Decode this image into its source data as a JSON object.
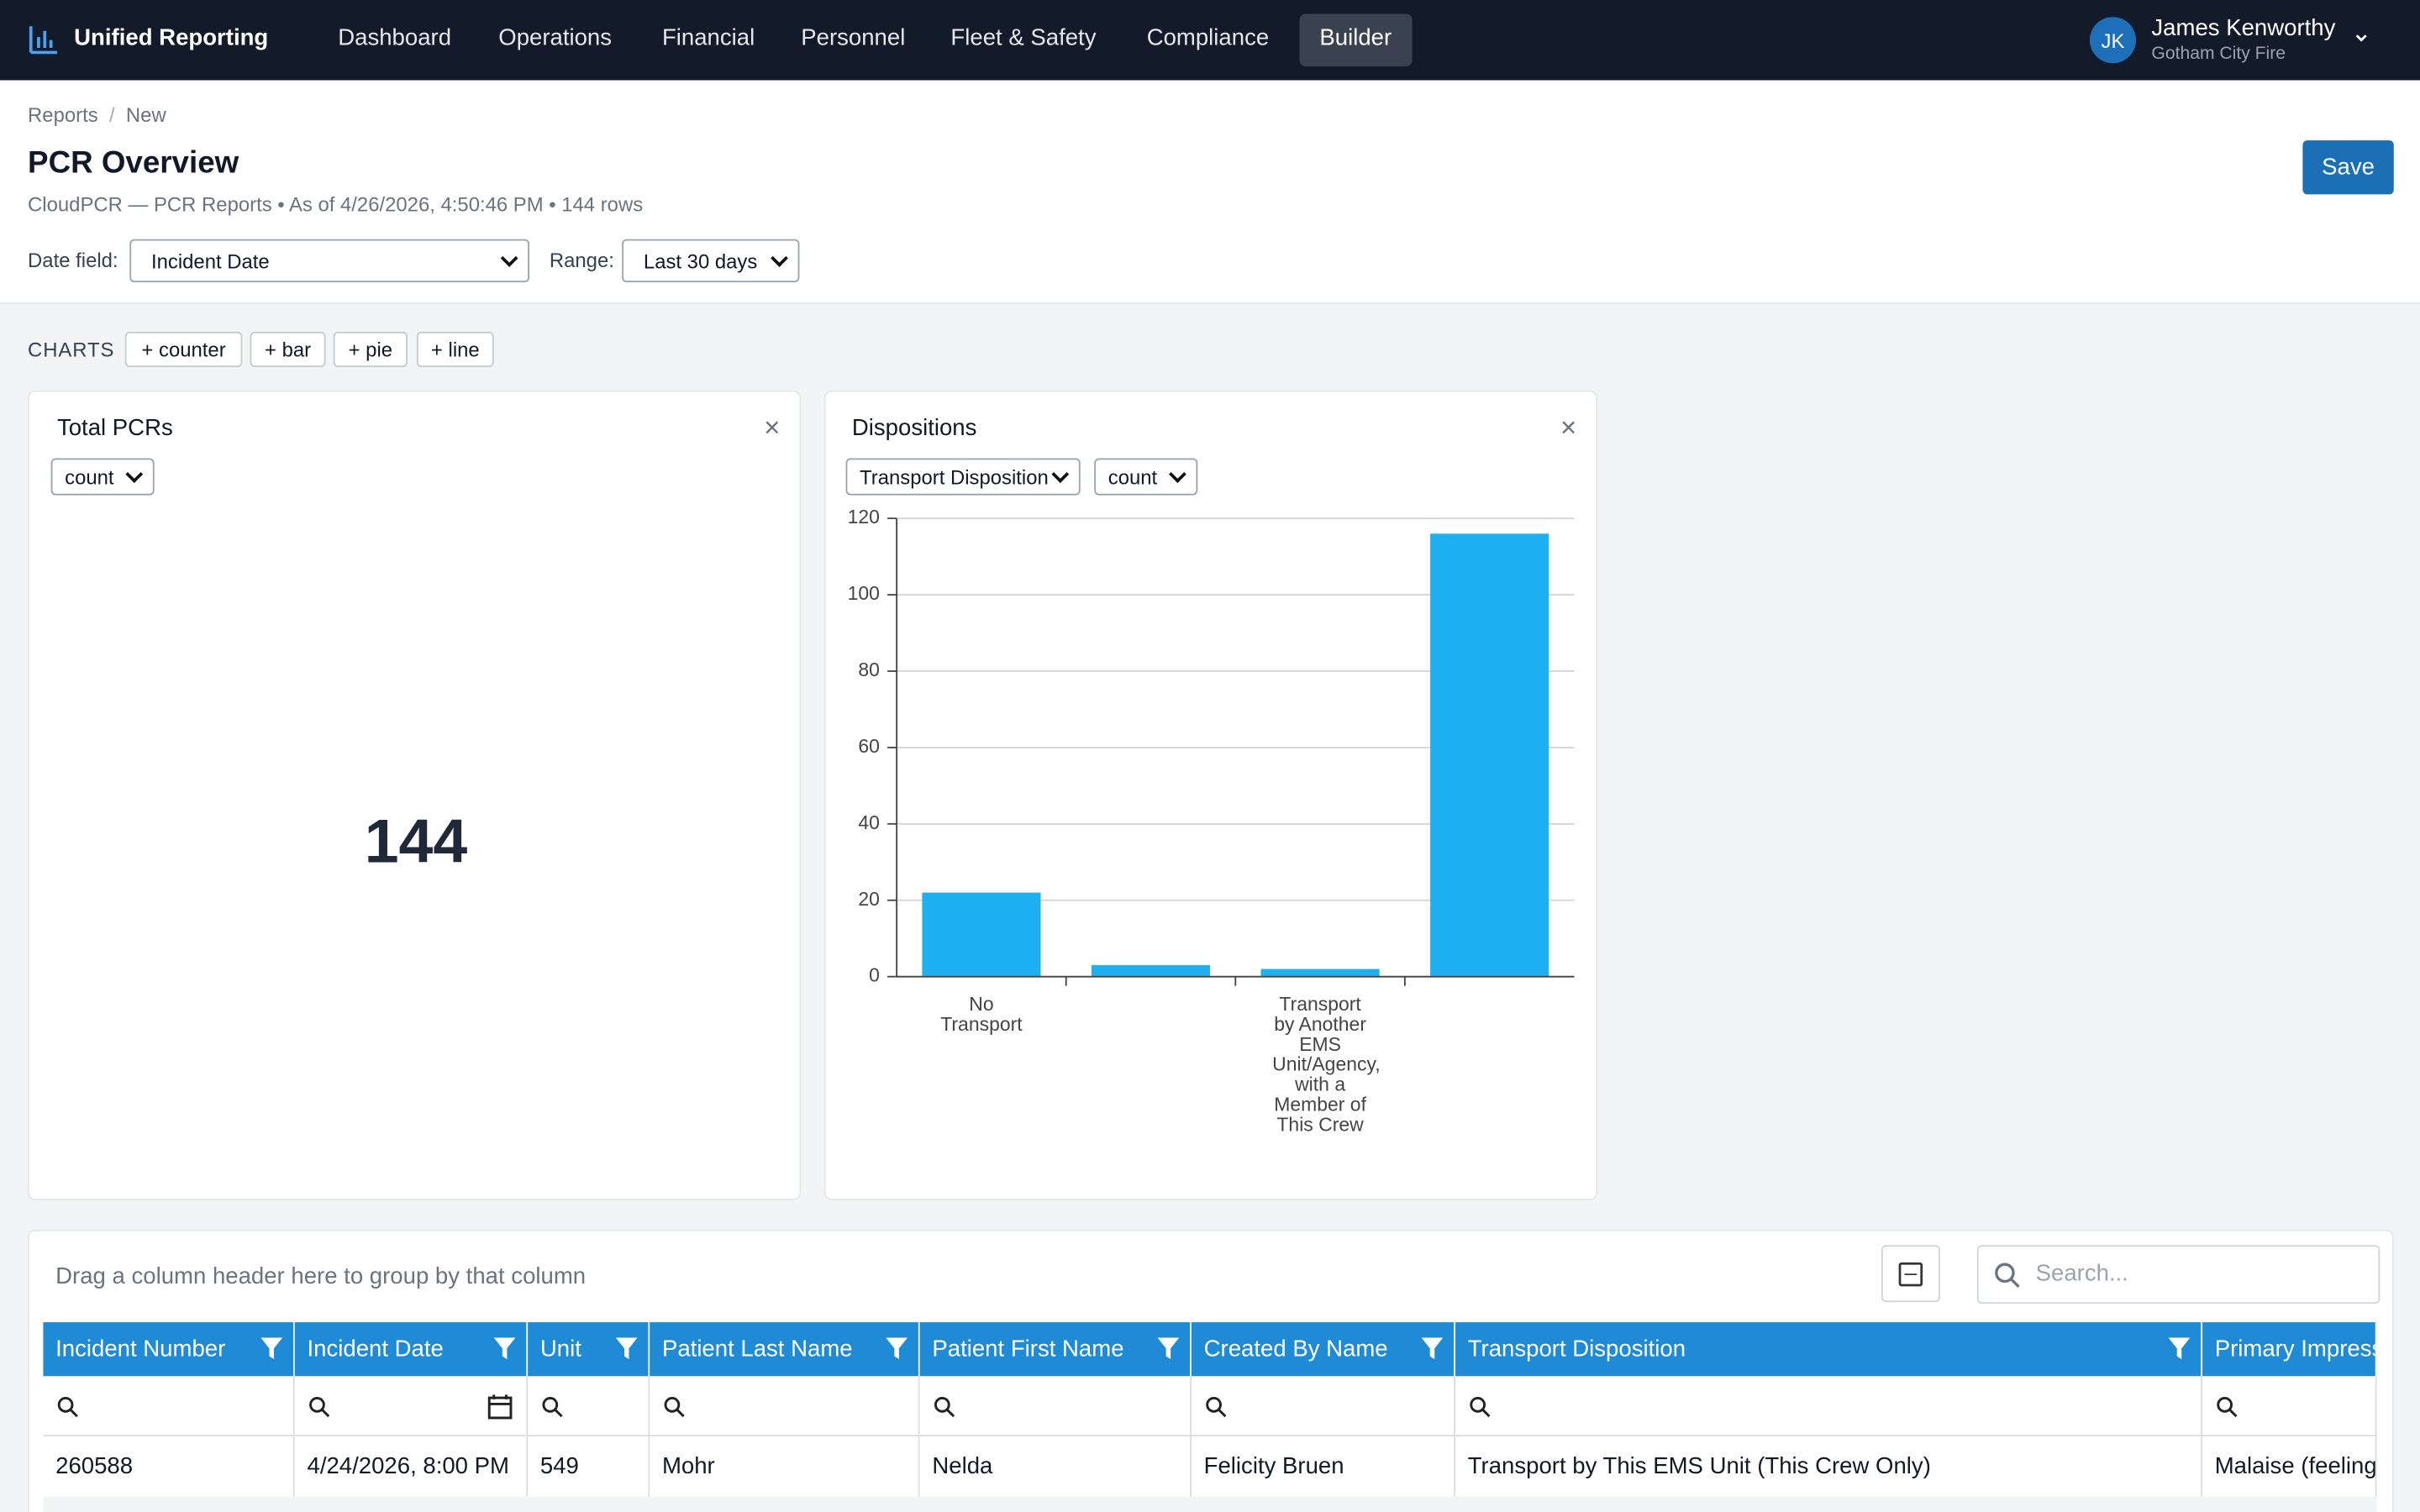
{
  "app": {
    "name": "Unified Reporting"
  },
  "nav": [
    "Dashboard",
    "Operations",
    "Financial",
    "Personnel",
    "Fleet & Safety",
    "Compliance",
    "Builder"
  ],
  "user": {
    "initials": "JK",
    "name": "James Kenworthy",
    "org": "Gotham City Fire"
  },
  "breadcrumb": [
    "Reports",
    "/",
    "New"
  ],
  "header": {
    "title": "PCR Overview",
    "subtitle": "CloudPCR — PCR Reports • As of 4/26/2026, 4:50:46 PM • 144 rows",
    "save": "Save"
  },
  "filters": {
    "date_label": "Date field:",
    "date_value": "Incident Date",
    "range_label": "Range:",
    "range_value": "Last 30 days"
  },
  "charts_toolbar": {
    "label": "CHARTS",
    "buttons": [
      "+ counter",
      "+ bar",
      "+ pie",
      "+ line"
    ]
  },
  "counter": {
    "title": "Total PCRs",
    "measure": "count",
    "value": "144"
  },
  "bar_panel": {
    "title": "Dispositions",
    "field": "Transport Disposition",
    "measure": "count",
    "chart_data": {
      "type": "bar",
      "categories": [
        "No Transport",
        null,
        "Transport by Another EMS Unit/Agency, with a Member of This Crew",
        null
      ],
      "values": [
        22,
        3,
        2,
        116
      ],
      "color": "#1eb0f0",
      "ylim": [
        0,
        120
      ],
      "yticks": [
        0,
        20,
        40,
        60,
        80,
        100,
        120
      ],
      "grid": true
    }
  },
  "table": {
    "group_hint": "Drag a column header here to group by that column",
    "search": "Search...",
    "columns": [
      "Incident Number",
      "Incident Date",
      "Unit",
      "Patient Last Name",
      "Patient First Name",
      "Created By Name",
      "Transport Disposition",
      "Primary Impress"
    ],
    "rows": [
      [
        "260588",
        "4/24/2026, 8:00 PM",
        "549",
        "Mohr",
        "Nelda",
        "Felicity Bruen",
        "Transport by This EMS Unit (This Crew Only)",
        "Malaise (feeling"
      ]
    ]
  }
}
